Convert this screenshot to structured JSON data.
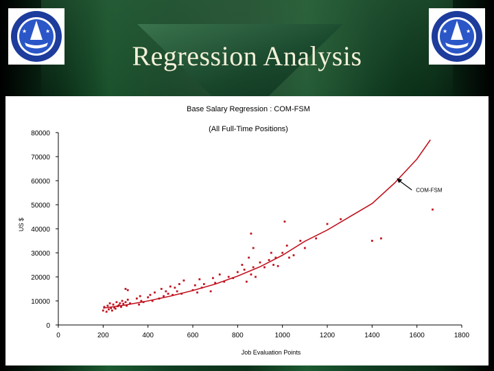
{
  "slide": {
    "title": "Regression Analysis"
  },
  "logos": {
    "left_name": "college-seal",
    "right_name": "college-seal"
  },
  "colors": {
    "series": "#c1121f",
    "text": "#000000",
    "title": "#f3f0d8"
  },
  "chart_data": {
    "type": "scatter",
    "title": "Base Salary Regression : COM-FSM",
    "subtitle": "(All Full-Time Positions)",
    "xlabel": "Job Evaluation Points",
    "ylabel": "US $",
    "xlim": [
      0,
      1800
    ],
    "ylim": [
      0,
      80000
    ],
    "x_ticks": [
      0,
      200,
      400,
      600,
      800,
      1000,
      1200,
      1400,
      1600,
      1800
    ],
    "y_ticks": [
      0,
      10000,
      20000,
      30000,
      40000,
      50000,
      60000,
      70000,
      80000
    ],
    "x_tick_labels": [
      "0",
      "200",
      "400",
      "600",
      "800",
      "1000",
      "1200",
      "1400",
      "1600",
      "1800"
    ],
    "y_tick_labels": [
      "0",
      "10000",
      "20000",
      "30000",
      "40000",
      "50000",
      "60000",
      "70000",
      "80000"
    ],
    "grid": false,
    "annotation": {
      "text": "COM-FSM",
      "x": 1510,
      "y": 61000
    },
    "series": [
      {
        "name": "COM-FSM",
        "kind": "points",
        "x": [
          200,
          205,
          215,
          220,
          225,
          230,
          235,
          240,
          245,
          250,
          255,
          260,
          265,
          270,
          275,
          280,
          285,
          290,
          300,
          300,
          305,
          310,
          310,
          320,
          350,
          360,
          365,
          370,
          380,
          400,
          410,
          420,
          430,
          450,
          460,
          470,
          480,
          490,
          500,
          510,
          520,
          530,
          540,
          550,
          560,
          600,
          610,
          620,
          630,
          640,
          650,
          680,
          690,
          700,
          720,
          740,
          760,
          780,
          800,
          820,
          830,
          840,
          850,
          860,
          860,
          870,
          870,
          880,
          900,
          920,
          940,
          950,
          960,
          970,
          980,
          1000,
          1010,
          1020,
          1030,
          1050,
          1080,
          1100,
          1150,
          1200,
          1260,
          1400,
          1440,
          1670
        ],
        "y": [
          6000,
          7500,
          5500,
          8000,
          6500,
          9000,
          7000,
          6000,
          8500,
          7200,
          6800,
          9500,
          7800,
          8200,
          9000,
          7500,
          10000,
          8800,
          9500,
          15000,
          8000,
          14500,
          10500,
          9000,
          11000,
          8500,
          12000,
          10000,
          9500,
          11500,
          12500,
          10000,
          13500,
          11000,
          15000,
          12000,
          14000,
          13000,
          16000,
          12500,
          15500,
          14000,
          17000,
          13000,
          18500,
          14500,
          16500,
          13500,
          19000,
          15500,
          17000,
          14000,
          19500,
          17500,
          21000,
          18000,
          20000,
          19500,
          22000,
          25000,
          23000,
          18000,
          28000,
          21000,
          38000,
          24000,
          32000,
          20000,
          26000,
          24000,
          27000,
          30000,
          25000,
          28000,
          24500,
          30000,
          43000,
          33000,
          28000,
          29000,
          35000,
          32000,
          36000,
          42000,
          44000,
          35000,
          36000,
          48000
        ]
      },
      {
        "name": "COM-FSM regression",
        "kind": "line",
        "x": [
          200,
          300,
          400,
          500,
          600,
          700,
          800,
          900,
          1000,
          1100,
          1200,
          1300,
          1400,
          1500,
          1600,
          1660
        ],
        "y": [
          7000,
          8300,
          10000,
          12000,
          14300,
          17000,
          20300,
          24200,
          29000,
          34800,
          39500,
          45000,
          50500,
          59000,
          69000,
          77000
        ]
      }
    ]
  }
}
